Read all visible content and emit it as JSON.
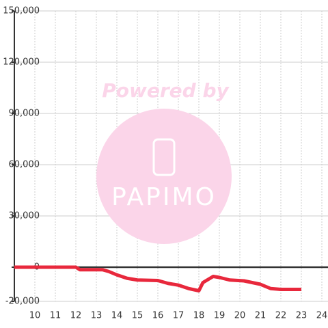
{
  "chart_data": {
    "type": "line",
    "watermark": {
      "line1": "Powered by",
      "line2": "PAPIMO"
    },
    "x": [
      9,
      12,
      12.2,
      13.3,
      13.6,
      14,
      14.5,
      15,
      16,
      16.5,
      17,
      17.5,
      18,
      18.2,
      18.7,
      19,
      19.5,
      20.2,
      21,
      21.5,
      22,
      23
    ],
    "series": [
      {
        "color": "#e8283c",
        "values": [
          0,
          0,
          -1500,
          -1500,
          -2500,
          -4500,
          -6500,
          -7500,
          -7800,
          -9500,
          -10500,
          -12500,
          -13800,
          -9000,
          -5400,
          -6000,
          -7500,
          -8000,
          -10000,
          -12500,
          -13000,
          -13000
        ]
      }
    ],
    "xlim": [
      9,
      24.3
    ],
    "ylim": [
      -20000,
      150000
    ],
    "xticks": [
      10,
      11,
      12,
      13,
      14,
      15,
      16,
      17,
      18,
      19,
      20,
      21,
      22,
      23,
      24
    ],
    "yticks": [
      {
        "value": -20000,
        "label": "-20,000"
      },
      0,
      {
        "value": 30000,
        "label": "30,000"
      },
      {
        "value": 60000,
        "label": "60,000"
      },
      {
        "value": 90000,
        "label": "90,000"
      },
      {
        "value": 120000,
        "label": "120,000"
      },
      {
        "value": 150000,
        "label": "150,000"
      }
    ],
    "grid": true
  }
}
